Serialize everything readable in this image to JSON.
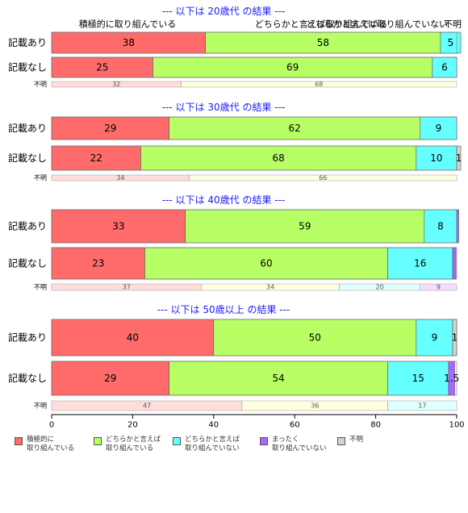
{
  "chart_data": {
    "type": "bar",
    "orientation": "horizontal",
    "stacked": true,
    "xlim": [
      0,
      100
    ],
    "x_ticks": [
      "0",
      "20",
      "40",
      "60",
      "80",
      "100"
    ],
    "categories": [
      "積極的に\n取り組んでいる",
      "どちらかと言えば\n取り組んでいる",
      "どちらかと言えば\n取り組んでいない",
      "まったく\n取り組んでいない",
      "不明"
    ],
    "colors": [
      "#FF6B6B",
      "#B8FF66",
      "#66FFFF",
      "#AA66FF",
      "#D3D3D3"
    ],
    "faint_colors": [
      "#FFDDDD",
      "#FFFFE0",
      "#E0FFFF",
      "#F5DDFF",
      "#F0F0F0"
    ],
    "top_headers": [
      "積極的に取り組んでいる",
      "どちらかと言えば取り組んでいる",
      "どちらかと言えば取り組んでいない",
      "不明"
    ],
    "groups": [
      {
        "title": "--- 以下は 20歳代 の結果 ---",
        "rows": [
          {
            "label": "記載あり",
            "values": [
              38,
              58,
              5,
              0,
              0
            ]
          },
          {
            "label": "記載なし",
            "values": [
              25,
              69,
              6,
              0,
              0
            ]
          }
        ],
        "unknown": {
          "label": "不明",
          "values": [
            32,
            68,
            0,
            0
          ]
        }
      },
      {
        "title": "--- 以下は 30歳代 の結果 ---",
        "rows": [
          {
            "label": "記載あり",
            "values": [
              29,
              62,
              9,
              0,
              0
            ]
          },
          {
            "label": "記載なし",
            "values": [
              22,
              68,
              10,
              0,
              1
            ]
          }
        ],
        "unknown": {
          "label": "不明",
          "values": [
            34,
            66,
            0,
            0
          ]
        }
      },
      {
        "title": "--- 以下は 40歳代 の結果 ---",
        "rows": [
          {
            "label": "記載あり",
            "values": [
              33,
              59,
              8,
              0.5,
              0
            ]
          },
          {
            "label": "記載なし",
            "values": [
              23,
              60,
              16,
              0.8,
              0
            ]
          }
        ],
        "unknown": {
          "label": "不明",
          "values": [
            37,
            34,
            20,
            9
          ]
        }
      },
      {
        "title": "--- 以下は 50歳以上 の結果 ---",
        "rows": [
          {
            "label": "記載あり",
            "values": [
              40,
              50,
              9,
              0,
              1
            ]
          },
          {
            "label": "記載なし",
            "values": [
              29,
              54,
              15,
              1.5,
              0
            ]
          }
        ],
        "unknown": {
          "label": "不明",
          "values": [
            47,
            36,
            17,
            0
          ]
        }
      }
    ]
  }
}
